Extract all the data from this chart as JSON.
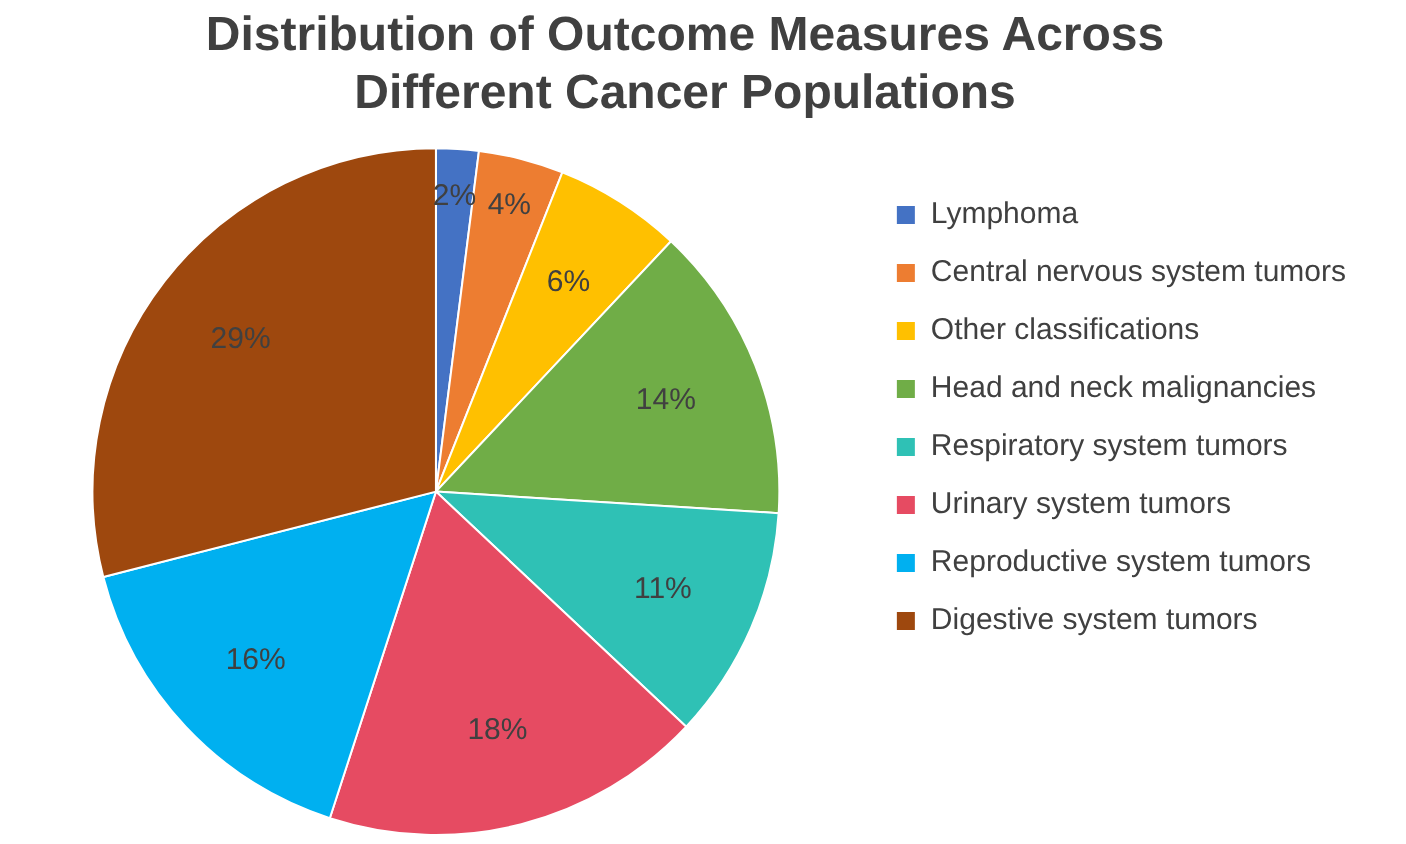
{
  "chart_data": {
    "type": "pie",
    "title": "Distribution of Outcome Measures  Across Different Cancer Populations",
    "categories": [
      "Lymphoma",
      "Central nervous system tumors",
      "Other classifications",
      "Head and neck malignancies",
      "Respiratory system tumors",
      "Urinary system tumors",
      "Reproductive system tumors",
      "Digestive system tumors"
    ],
    "values": [
      2,
      4,
      6,
      14,
      11,
      18,
      16,
      29
    ],
    "value_labels": [
      "2%",
      "4%",
      "6%",
      "14%",
      "11%",
      "18%",
      "16%",
      "29%"
    ],
    "colors": [
      "#4472c4",
      "#ed7d31",
      "#ffc000",
      "#70ad47",
      "#2fc1b5",
      "#e64b62",
      "#00b0f0",
      "#9e480e"
    ],
    "legend": "right"
  }
}
